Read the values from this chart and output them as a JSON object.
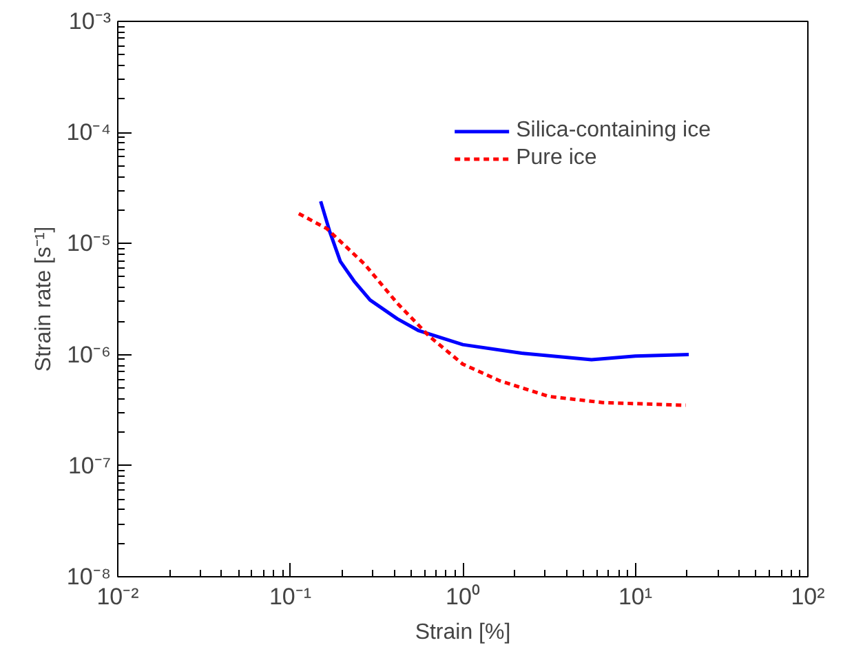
{
  "chart_data": {
    "type": "line",
    "xlabel": "Strain [%]",
    "ylabel": "Strain rate [s⁻¹]",
    "log": "xy",
    "xlim": [
      0.01,
      100
    ],
    "ylim": [
      1e-08,
      0.001
    ],
    "xticks": [
      {
        "value": 0.01,
        "label": "10⁻²"
      },
      {
        "value": 0.1,
        "label": "10⁻¹"
      },
      {
        "value": 1,
        "label": "10⁰"
      },
      {
        "value": 10,
        "label": "10¹"
      },
      {
        "value": 100,
        "label": "10²"
      }
    ],
    "yticks": [
      {
        "value": 1e-08,
        "label": "10⁻⁸"
      },
      {
        "value": 1e-07,
        "label": "10⁻⁷"
      },
      {
        "value": 1e-06,
        "label": "10⁻⁶"
      },
      {
        "value": 1e-05,
        "label": "10⁻⁵"
      },
      {
        "value": 0.0001,
        "label": "10⁻⁴"
      },
      {
        "value": 0.001,
        "label": "10⁻³"
      }
    ],
    "grid": false,
    "legend": "top right",
    "series": [
      {
        "name": "Silica-containing ice",
        "color": "#0000ff",
        "line_style": "solid",
        "x": [
          0.15,
          0.169,
          0.195,
          0.234,
          0.29,
          0.417,
          0.556,
          1,
          2.19,
          5.57,
          10,
          20.4
        ],
        "values": [
          2.4e-05,
          1.29e-05,
          6.9e-06,
          4.6e-06,
          3.1e-06,
          2.1e-06,
          1.64e-06,
          1.23e-06,
          1.03e-06,
          9e-07,
          9.7e-07,
          1e-06
        ]
      },
      {
        "name": "Pure ice",
        "color": "#ff0000",
        "line_style": "dashed",
        "x": [
          0.112,
          0.163,
          0.27,
          0.417,
          0.64,
          1,
          1.64,
          3.16,
          6.46,
          19.6
        ],
        "values": [
          1.86e-05,
          1.36e-05,
          6.5e-06,
          2.9e-06,
          1.46e-06,
          8.2e-07,
          5.8e-07,
          4.2e-07,
          3.7e-07,
          3.5e-07
        ]
      }
    ]
  }
}
